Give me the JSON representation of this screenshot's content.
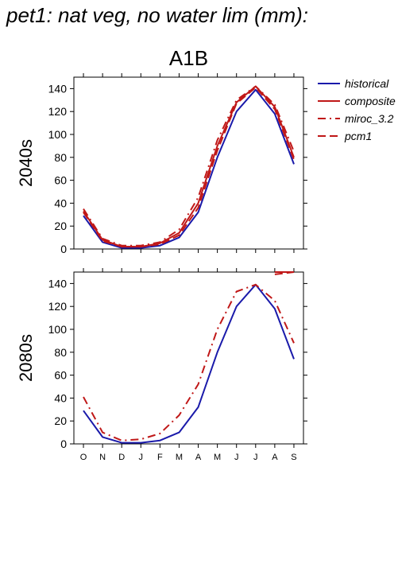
{
  "figure_title": "pet1: nat veg, no water lim (mm):",
  "chart_data": [
    {
      "type": "line",
      "title": "A1B",
      "ylabel": "2040s",
      "xlabel": "",
      "ylim": [
        0,
        150
      ],
      "yticks": [
        0,
        20,
        40,
        60,
        80,
        100,
        120,
        140
      ],
      "categories": [
        "O",
        "N",
        "D",
        "J",
        "F",
        "M",
        "A",
        "M",
        "J",
        "J",
        "A",
        "S"
      ],
      "show_x_tick_labels": false,
      "legend_position": "right",
      "series": [
        {
          "name": "historical",
          "color": "#1a1aaa",
          "dash": "solid",
          "values": [
            29,
            6,
            1,
            1,
            3,
            10,
            32,
            80,
            120,
            139,
            118,
            74
          ]
        },
        {
          "name": "composite",
          "color": "#c01818",
          "dash": "solid",
          "values": [
            33,
            8,
            2,
            2,
            5,
            14,
            40,
            90,
            128,
            142,
            124,
            80
          ]
        },
        {
          "name": "miroc_3.2",
          "color": "#c01818",
          "dash": "dashdot",
          "values": [
            35,
            9,
            3,
            3,
            6,
            17,
            45,
            95,
            130,
            142,
            126,
            85
          ]
        },
        {
          "name": "pcm1",
          "color": "#c01818",
          "dash": "dashed",
          "values": [
            32,
            7,
            2,
            2,
            4,
            12,
            36,
            86,
            127,
            141,
            122,
            78
          ]
        }
      ]
    },
    {
      "type": "line",
      "title": "",
      "ylabel": "2080s",
      "xlabel": "",
      "ylim": [
        0,
        150
      ],
      "yticks": [
        0,
        20,
        40,
        60,
        80,
        100,
        120,
        140
      ],
      "categories": [
        "O",
        "N",
        "D",
        "J",
        "F",
        "M",
        "A",
        "M",
        "J",
        "J",
        "A",
        "S"
      ],
      "show_x_tick_labels": true,
      "series": [
        {
          "name": "historical",
          "color": "#1a1aaa",
          "dash": "solid",
          "values": [
            29,
            6,
            1,
            1,
            3,
            10,
            32,
            80,
            120,
            139,
            118,
            74
          ]
        },
        {
          "name": "composite",
          "color": "#c01818",
          "dash": "solid",
          "values": [
            null,
            null,
            null,
            null,
            null,
            null,
            null,
            null,
            null,
            null,
            150,
            150
          ]
        },
        {
          "name": "miroc_3.2",
          "color": "#c01818",
          "dash": "dashdot",
          "values": [
            41,
            10,
            3,
            4,
            9,
            25,
            52,
            100,
            133,
            139,
            125,
            88
          ]
        },
        {
          "name": "pcm1",
          "color": "#c01818",
          "dash": "dashed",
          "values": [
            null,
            null,
            null,
            null,
            null,
            null,
            null,
            null,
            null,
            null,
            148,
            150
          ]
        }
      ]
    }
  ]
}
